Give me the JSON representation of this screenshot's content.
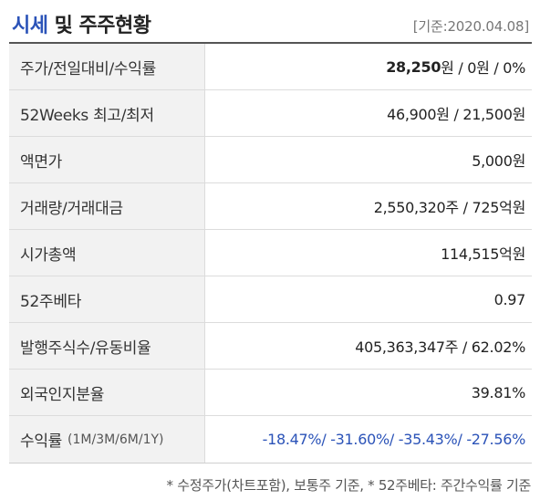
{
  "header": {
    "title_accent": "시세",
    "title_rest": " 및 주주현황",
    "date": "[기준:2020.04.08]"
  },
  "rows": [
    {
      "label": "주가/전일대비/수익률",
      "value_bold": "28,250",
      "value_rest": "원 / 0원 / 0%"
    },
    {
      "label": "52Weeks 최고/최저",
      "value": "46,900원 / 21,500원"
    },
    {
      "label": "액면가",
      "value": "5,000원"
    },
    {
      "label": "거래량/거래대금",
      "value": "2,550,320주 / 725억원"
    },
    {
      "label": "시가총액",
      "value": "114,515억원"
    },
    {
      "label": "52주베타",
      "value": "0.97"
    },
    {
      "label": "발행주식수/유동비율",
      "value": "405,363,347주 / 62.02%"
    },
    {
      "label": "외국인지분율",
      "value": "39.81%"
    },
    {
      "label": "수익률",
      "label_sub": "(1M/3M/6M/1Y)",
      "value": "-18.47%/ -31.60%/ -35.43%/ -27.56%"
    }
  ],
  "footnote": "* 수정주가(차트포함), 보통주 기준, * 52주베타: 주간수익률 기준",
  "colors": {
    "accent": "#2b53b8",
    "header_bg": "#f2f2f2"
  }
}
